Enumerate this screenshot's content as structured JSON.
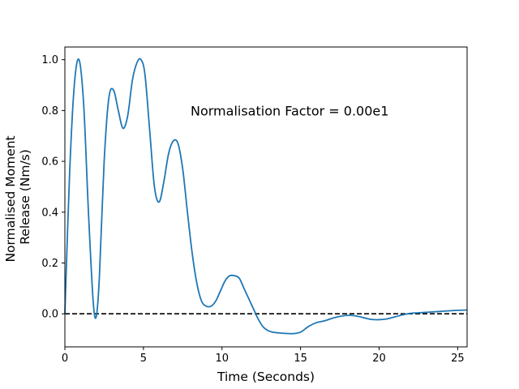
{
  "chart_data": {
    "type": "line",
    "title": "",
    "xlabel": "Time (Seconds)",
    "ylabel_lines": [
      "Normalised Moment",
      "Release (Nm/s)"
    ],
    "xlim": [
      0,
      25.6
    ],
    "ylim": [
      -0.13,
      1.05
    ],
    "xticks": [
      0,
      5,
      10,
      15,
      20,
      25
    ],
    "yticks": [
      0.0,
      0.2,
      0.4,
      0.6,
      0.8,
      1.0
    ],
    "ytick_labels": [
      "0.0",
      "0.2",
      "0.4",
      "0.6",
      "0.8",
      "1.0"
    ],
    "grid": false,
    "series": [
      {
        "color": "#1f77b4",
        "x": [
          0,
          0.3,
          0.6,
          0.9,
          1.2,
          1.5,
          1.8,
          2.0,
          2.2,
          2.5,
          2.8,
          3.1,
          3.4,
          3.7,
          4.0,
          4.3,
          4.6,
          4.85,
          5.1,
          5.4,
          5.7,
          6.0,
          6.3,
          6.6,
          6.9,
          7.2,
          7.5,
          7.8,
          8.1,
          8.4,
          8.7,
          9.0,
          9.3,
          9.6,
          9.9,
          10.2,
          10.5,
          10.8,
          11.1,
          11.4,
          11.7,
          12.0,
          12.3,
          12.6,
          12.9,
          13.2,
          13.6,
          14.0,
          14.5,
          15.0,
          15.5,
          16.0,
          16.5,
          17.0,
          17.5,
          18.0,
          18.5,
          19.0,
          19.5,
          20.0,
          20.5,
          21.0,
          21.5,
          22.0,
          22.5,
          23.0,
          23.5,
          24.0,
          24.5,
          25.0,
          25.6
        ],
        "y": [
          0.0,
          0.55,
          0.9,
          1.0,
          0.82,
          0.4,
          0.05,
          -0.01,
          0.15,
          0.6,
          0.85,
          0.88,
          0.8,
          0.73,
          0.78,
          0.92,
          0.99,
          1.0,
          0.94,
          0.72,
          0.5,
          0.44,
          0.52,
          0.63,
          0.68,
          0.67,
          0.57,
          0.4,
          0.24,
          0.12,
          0.05,
          0.03,
          0.03,
          0.05,
          0.09,
          0.13,
          0.15,
          0.15,
          0.14,
          0.1,
          0.06,
          0.02,
          -0.02,
          -0.05,
          -0.065,
          -0.072,
          -0.075,
          -0.077,
          -0.078,
          -0.072,
          -0.05,
          -0.035,
          -0.028,
          -0.018,
          -0.01,
          -0.006,
          -0.008,
          -0.015,
          -0.022,
          -0.023,
          -0.02,
          -0.012,
          -0.004,
          0.002,
          0.004,
          0.006,
          0.008,
          0.01,
          0.012,
          0.014,
          0.015
        ]
      }
    ],
    "reference_line": {
      "y": 0.0,
      "color": "#000000",
      "style": "dashed"
    },
    "annotations": [
      {
        "text": "Normalisation Factor = 0.00e1",
        "x": 8.0,
        "y": 0.8
      }
    ]
  }
}
